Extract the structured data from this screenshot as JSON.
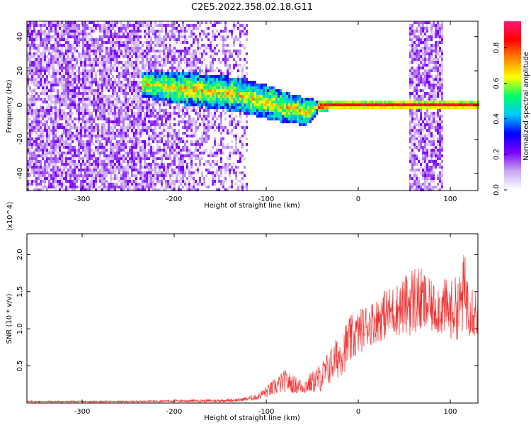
{
  "figure": {
    "title": "C2E5.2022.358.02.18.G11"
  },
  "colorbar": {
    "label": "Normalized spectral amplitude",
    "ticks": [
      "0.0",
      "0.2",
      "0.4",
      "0.6",
      "0.8"
    ],
    "colors": [
      "#ffffff",
      "#c8a8f0",
      "#7a00ff",
      "#0000ff",
      "#00c8ff",
      "#00ff66",
      "#ffff00",
      "#ff8800",
      "#ff0000",
      "#ff1a7a"
    ]
  },
  "chart_data": [
    {
      "type": "heatmap",
      "title": "",
      "xlabel": "Height of straight line (km)",
      "ylabel": "Frequency (Hz)",
      "xlim": [
        -360,
        130
      ],
      "ylim": [
        -50,
        49
      ],
      "xticks": [
        {
          "v": -300,
          "t": "-300"
        },
        {
          "v": -200,
          "t": "-200"
        },
        {
          "v": -100,
          "t": "-100"
        },
        {
          "v": 0,
          "t": "0"
        },
        {
          "v": 100,
          "t": "100"
        }
      ],
      "yticks": [
        {
          "v": -40,
          "t": "-40"
        },
        {
          "v": -20,
          "t": "-20"
        },
        {
          "v": 0,
          "t": "0"
        },
        {
          "v": 20,
          "t": "20"
        },
        {
          "v": 40,
          "t": "40"
        }
      ],
      "value_range": [
        0,
        1
      ],
      "ridge": {
        "x": [
          -230,
          -200,
          -160,
          -130,
          -100,
          -75,
          -55,
          -45,
          -30,
          0,
          30,
          55,
          90,
          110,
          130
        ],
        "center_hz": [
          12,
          10,
          8,
          6,
          2,
          -2,
          -4,
          -1,
          0,
          0,
          0,
          0,
          0,
          0,
          0
        ],
        "width_hz": [
          8,
          9,
          10,
          10,
          10,
          9,
          8,
          4,
          3,
          3,
          3,
          3,
          3,
          3,
          3
        ]
      },
      "noise_bands": [
        [
          -360,
          -120
        ],
        [
          55,
          93
        ]
      ]
    },
    {
      "type": "line",
      "title": "",
      "xlabel": "Height of straight line (km)",
      "ylabel": "SNR (10 * v/v)",
      "y_multiplier": "(x10^4)",
      "xlim": [
        -360,
        130
      ],
      "ylim": [
        0,
        2.28
      ],
      "color": "#ee3333",
      "xticks": [
        {
          "v": -300,
          "t": "-300"
        },
        {
          "v": -200,
          "t": "-200"
        },
        {
          "v": -100,
          "t": "-100"
        },
        {
          "v": 0,
          "t": "0"
        },
        {
          "v": 100,
          "t": "100"
        }
      ],
      "yticks": [
        {
          "v": 0.5,
          "t": "0.5"
        },
        {
          "v": 1.0,
          "t": "1.0"
        },
        {
          "v": 1.5,
          "t": "1.5"
        },
        {
          "v": 2.0,
          "t": "2.0"
        }
      ],
      "series": [
        {
          "x": [
            -360,
            -300,
            -250,
            -200,
            -160,
            -130,
            -110,
            -100,
            -90,
            -80,
            -70,
            -60,
            -50,
            -40,
            -30,
            -20,
            -10,
            0,
            10,
            20,
            30,
            40,
            50,
            60,
            70,
            80,
            90,
            100,
            110,
            115,
            120,
            130
          ],
          "y": [
            0.02,
            0.02,
            0.02,
            0.03,
            0.03,
            0.04,
            0.08,
            0.15,
            0.22,
            0.3,
            0.25,
            0.22,
            0.28,
            0.35,
            0.5,
            0.65,
            0.82,
            0.95,
            1.05,
            1.12,
            1.2,
            1.25,
            1.3,
            1.4,
            1.35,
            1.28,
            1.3,
            1.25,
            1.3,
            1.5,
            1.35,
            1.2
          ],
          "amplitude": [
            0.01,
            0.01,
            0.01,
            0.015,
            0.02,
            0.02,
            0.04,
            0.08,
            0.12,
            0.15,
            0.12,
            0.1,
            0.15,
            0.2,
            0.25,
            0.3,
            0.35,
            0.3,
            0.3,
            0.3,
            0.35,
            0.35,
            0.4,
            0.5,
            0.45,
            0.35,
            0.4,
            0.4,
            0.45,
            0.55,
            0.45,
            0.35
          ]
        }
      ]
    }
  ]
}
